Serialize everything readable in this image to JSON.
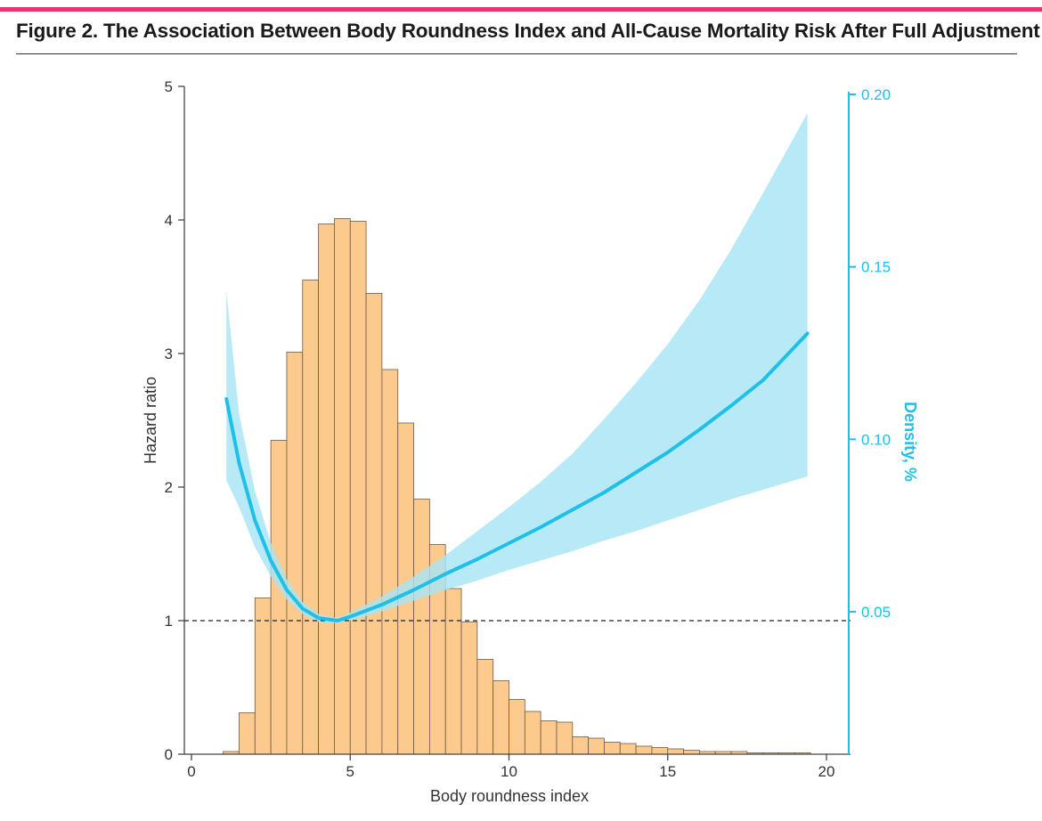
{
  "figure": {
    "title": "Figure 2. The Association Between Body Roundness Index and All-Cause Mortality Risk After Full Adjustment"
  },
  "colors": {
    "accent_bar": "#e6356f",
    "histogram_fill": "#fdca8e",
    "histogram_stroke": "#6b5a48",
    "curve": "#1ec0e8",
    "ci_band": "#a8e4f5",
    "right_axis": "#1ec0e8"
  },
  "chart_data": {
    "type": "line",
    "xlabel": "Body  roundness index",
    "ylabel": "Hazard ratio",
    "y2label": "Density, %",
    "xlim": [
      -0.2,
      20.5
    ],
    "ylim": [
      0,
      5
    ],
    "y2lim": [
      0.0095,
      0.2025
    ],
    "x_ticks": [
      0,
      5,
      10,
      15,
      20
    ],
    "y_ticks": [
      0,
      1,
      2,
      3,
      4,
      5
    ],
    "y2_ticks": [
      0.05,
      0.1,
      0.15,
      0.2
    ],
    "x_tick_labels": [
      "0",
      "5",
      "10",
      "15",
      "20"
    ],
    "y_tick_labels": [
      "0",
      "1",
      "2",
      "3",
      "4",
      "5"
    ],
    "y2_tick_labels": [
      "0.05",
      "0.10",
      "0.15",
      "0.20"
    ],
    "reference_line": {
      "y": 1,
      "style": "dashed"
    },
    "histogram": {
      "bin_width": 0.5,
      "bins_start": [
        1.0,
        1.5,
        2.0,
        2.5,
        3.0,
        3.5,
        4.0,
        4.5,
        5.0,
        5.5,
        6.0,
        6.5,
        7.0,
        7.5,
        8.0,
        8.5,
        9.0,
        9.5,
        10.0,
        10.5,
        11.0,
        11.5,
        12.0,
        12.5,
        13.0,
        13.5,
        14.0,
        14.5,
        15.0,
        15.5,
        16.0,
        16.5,
        17.0,
        17.5,
        18.0,
        18.5,
        19.0
      ],
      "hazard_scale_heights": [
        0.02,
        0.31,
        1.17,
        2.35,
        3.01,
        3.55,
        3.97,
        4.01,
        3.99,
        3.45,
        2.88,
        2.48,
        1.91,
        1.57,
        1.24,
        0.99,
        0.71,
        0.55,
        0.41,
        0.32,
        0.25,
        0.24,
        0.13,
        0.12,
        0.09,
        0.08,
        0.06,
        0.05,
        0.04,
        0.03,
        0.02,
        0.02,
        0.02,
        0.01,
        0.01,
        0.01,
        0.01
      ]
    },
    "series": [
      {
        "x": [
          1.1,
          1.5,
          2.0,
          2.5,
          3.0,
          3.5,
          4.0,
          4.6,
          5.0,
          6.0,
          7.0,
          8.0,
          9.0,
          10.0,
          11.0,
          12.0,
          13.0,
          14.0,
          15.0,
          16.0,
          17.0,
          18.0,
          19.4
        ],
        "y": [
          2.66,
          2.18,
          1.75,
          1.45,
          1.23,
          1.09,
          1.02,
          1.0,
          1.03,
          1.12,
          1.23,
          1.35,
          1.46,
          1.58,
          1.7,
          1.83,
          1.96,
          2.11,
          2.26,
          2.43,
          2.61,
          2.8,
          3.15
        ],
        "ci_lower": [
          2.05,
          1.85,
          1.55,
          1.33,
          1.16,
          1.05,
          0.99,
          0.98,
          1.0,
          1.07,
          1.15,
          1.23,
          1.3,
          1.38,
          1.45,
          1.52,
          1.6,
          1.67,
          1.75,
          1.83,
          1.91,
          1.98,
          2.08
        ],
        "ci_upper": [
          3.47,
          2.55,
          1.97,
          1.58,
          1.31,
          1.14,
          1.05,
          1.02,
          1.06,
          1.18,
          1.33,
          1.49,
          1.67,
          1.85,
          2.04,
          2.25,
          2.51,
          2.78,
          3.07,
          3.4,
          3.78,
          4.2,
          4.8
        ]
      }
    ]
  }
}
